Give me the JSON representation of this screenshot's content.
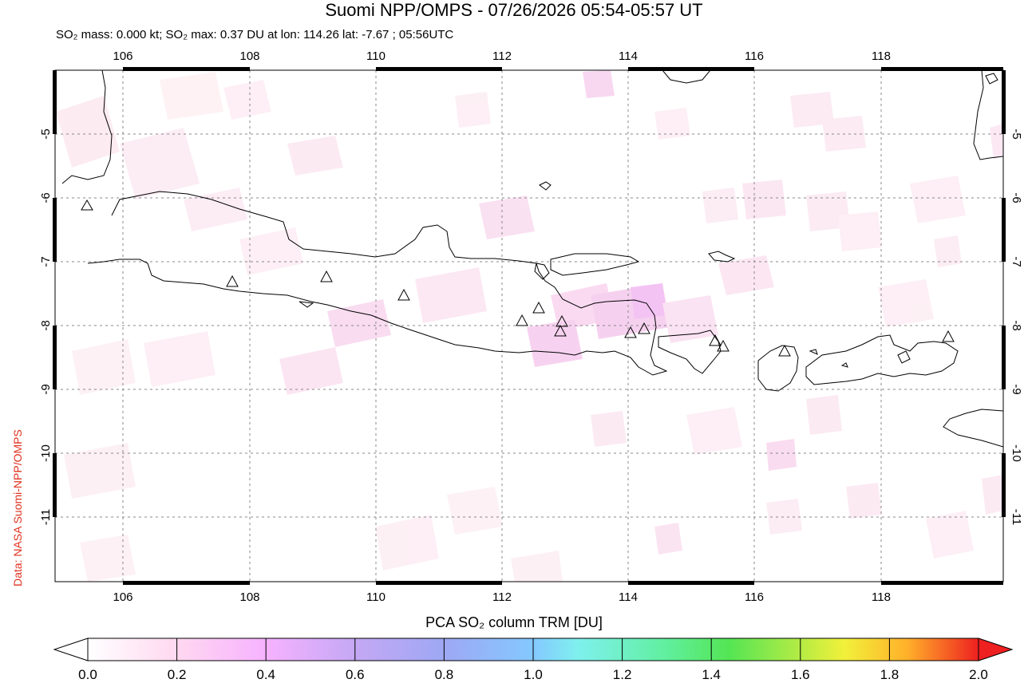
{
  "title": "Suomi NPP/OMPS - 07/26/2026 05:54-05:57 UT",
  "subtitle": "SO₂ mass: 0.000 kt; SO₂ max: 0.37 DU at lon: 114.26 lat: -7.67 ; 05:56UTC",
  "credit": "Data: NASA Suomi-NPP/OMPS",
  "map": {
    "lon_ticks": [
      "106",
      "108",
      "110",
      "112",
      "114",
      "116",
      "118"
    ],
    "lat_ticks": [
      "-5",
      "-6",
      "-7",
      "-8",
      "-9",
      "-10",
      "-11"
    ]
  },
  "colorbar": {
    "title": "PCA SO₂ column TRM [DU]",
    "labels": [
      "0.0",
      "0.2",
      "0.4",
      "0.6",
      "0.8",
      "1.0",
      "1.2",
      "1.4",
      "1.6",
      "1.8",
      "2.0"
    ],
    "colors": [
      "#fff4f4",
      "#ffc8ec",
      "#e0b0ff",
      "#a7a4f6",
      "#8cb0ff",
      "#7ee8f4",
      "#5ff0a6",
      "#5ce05c",
      "#c8f03c",
      "#ffd02a",
      "#ff6a1e",
      "#ef1f1f"
    ]
  }
}
